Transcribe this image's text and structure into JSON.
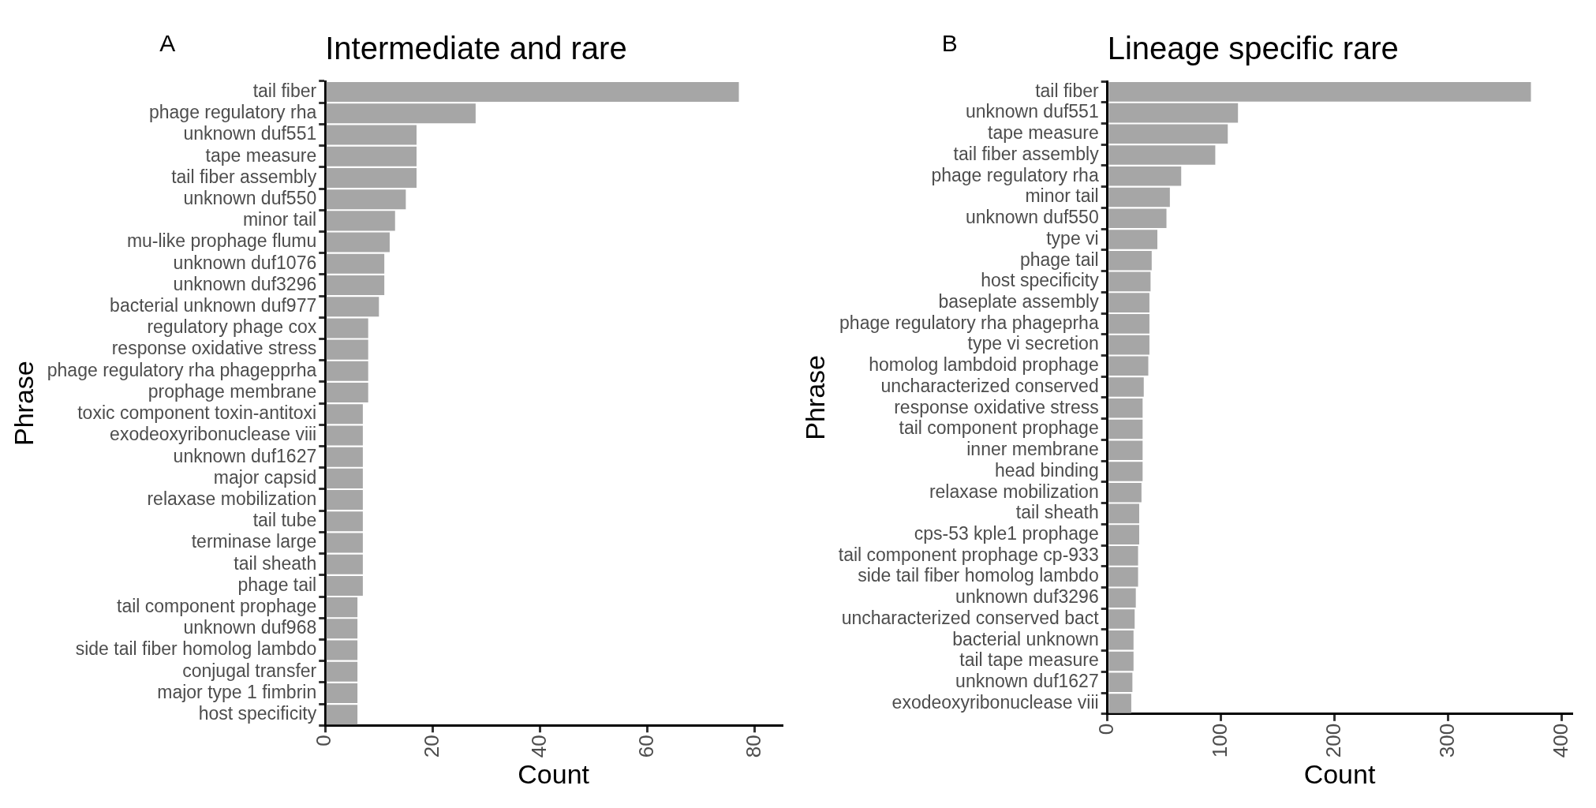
{
  "chart_data": [
    {
      "type": "bar",
      "orientation": "horizontal",
      "title": "Intermediate and rare",
      "xlabel": "Count",
      "ylabel": "Phrase",
      "annotations": [
        "A"
      ],
      "color": "#a6a6a6",
      "categories": [
        "tail fiber",
        "phage regulatory rha",
        "unknown duf551",
        "tape measure",
        "tail fiber assembly",
        "unknown duf550",
        "minor tail",
        "mu-like prophage flumu",
        "unknown duf1076",
        "unknown duf3296",
        "bacterial unknown duf977",
        "regulatory phage cox",
        "response oxidative stress",
        "phage regulatory rha phagepprha",
        "prophage membrane",
        "toxic component toxin-antitoxi",
        "exodeoxyribonuclease viii",
        "unknown duf1627",
        "major capsid",
        "relaxase mobilization",
        "tail tube",
        "terminase large",
        "tail sheath",
        "phage tail",
        "tail component prophage",
        "unknown duf968",
        "side tail fiber homolog lambdo",
        "conjugal transfer",
        "major type 1 fimbrin",
        "host specificity"
      ],
      "values": [
        77,
        28,
        17,
        17,
        17,
        15,
        13,
        12,
        11,
        11,
        10,
        8,
        8,
        8,
        8,
        7,
        7,
        7,
        7,
        7,
        7,
        7,
        7,
        7,
        6,
        6,
        6,
        6,
        6,
        6
      ],
      "xlim": [
        0,
        85
      ],
      "xticks": [
        0,
        20,
        40,
        60,
        80
      ]
    },
    {
      "type": "bar",
      "orientation": "horizontal",
      "title": "Lineage specific rare",
      "xlabel": "Count",
      "ylabel": "Phrase",
      "annotations": [
        "B"
      ],
      "color": "#a6a6a6",
      "categories": [
        "tail fiber",
        "unknown duf551",
        "tape measure",
        "tail fiber assembly",
        "phage regulatory rha",
        "minor tail",
        "unknown duf550",
        "type vi",
        "phage tail",
        "host specificity",
        "baseplate assembly",
        "phage regulatory rha phageprha",
        "type vi secretion",
        "homolog lambdoid prophage",
        "uncharacterized conserved",
        "response oxidative stress",
        "tail component prophage",
        "inner membrane",
        "head binding",
        "relaxase mobilization",
        "tail sheath",
        "cps-53 kple1 prophage",
        "tail component prophage cp-933",
        "side tail fiber homolog lambdo",
        "unknown duf3296",
        "uncharacterized conserved bact",
        "bacterial unknown",
        "tail tape measure",
        "unknown duf1627",
        "exodeoxyribonuclease viii"
      ],
      "values": [
        373,
        115,
        106,
        95,
        65,
        55,
        52,
        44,
        39,
        38,
        37,
        37,
        37,
        36,
        32,
        31,
        31,
        31,
        31,
        30,
        28,
        28,
        27,
        27,
        25,
        24,
        23,
        23,
        22,
        21
      ],
      "xlim": [
        0,
        409
      ],
      "xticks": [
        0,
        100,
        200,
        300,
        400
      ]
    }
  ]
}
